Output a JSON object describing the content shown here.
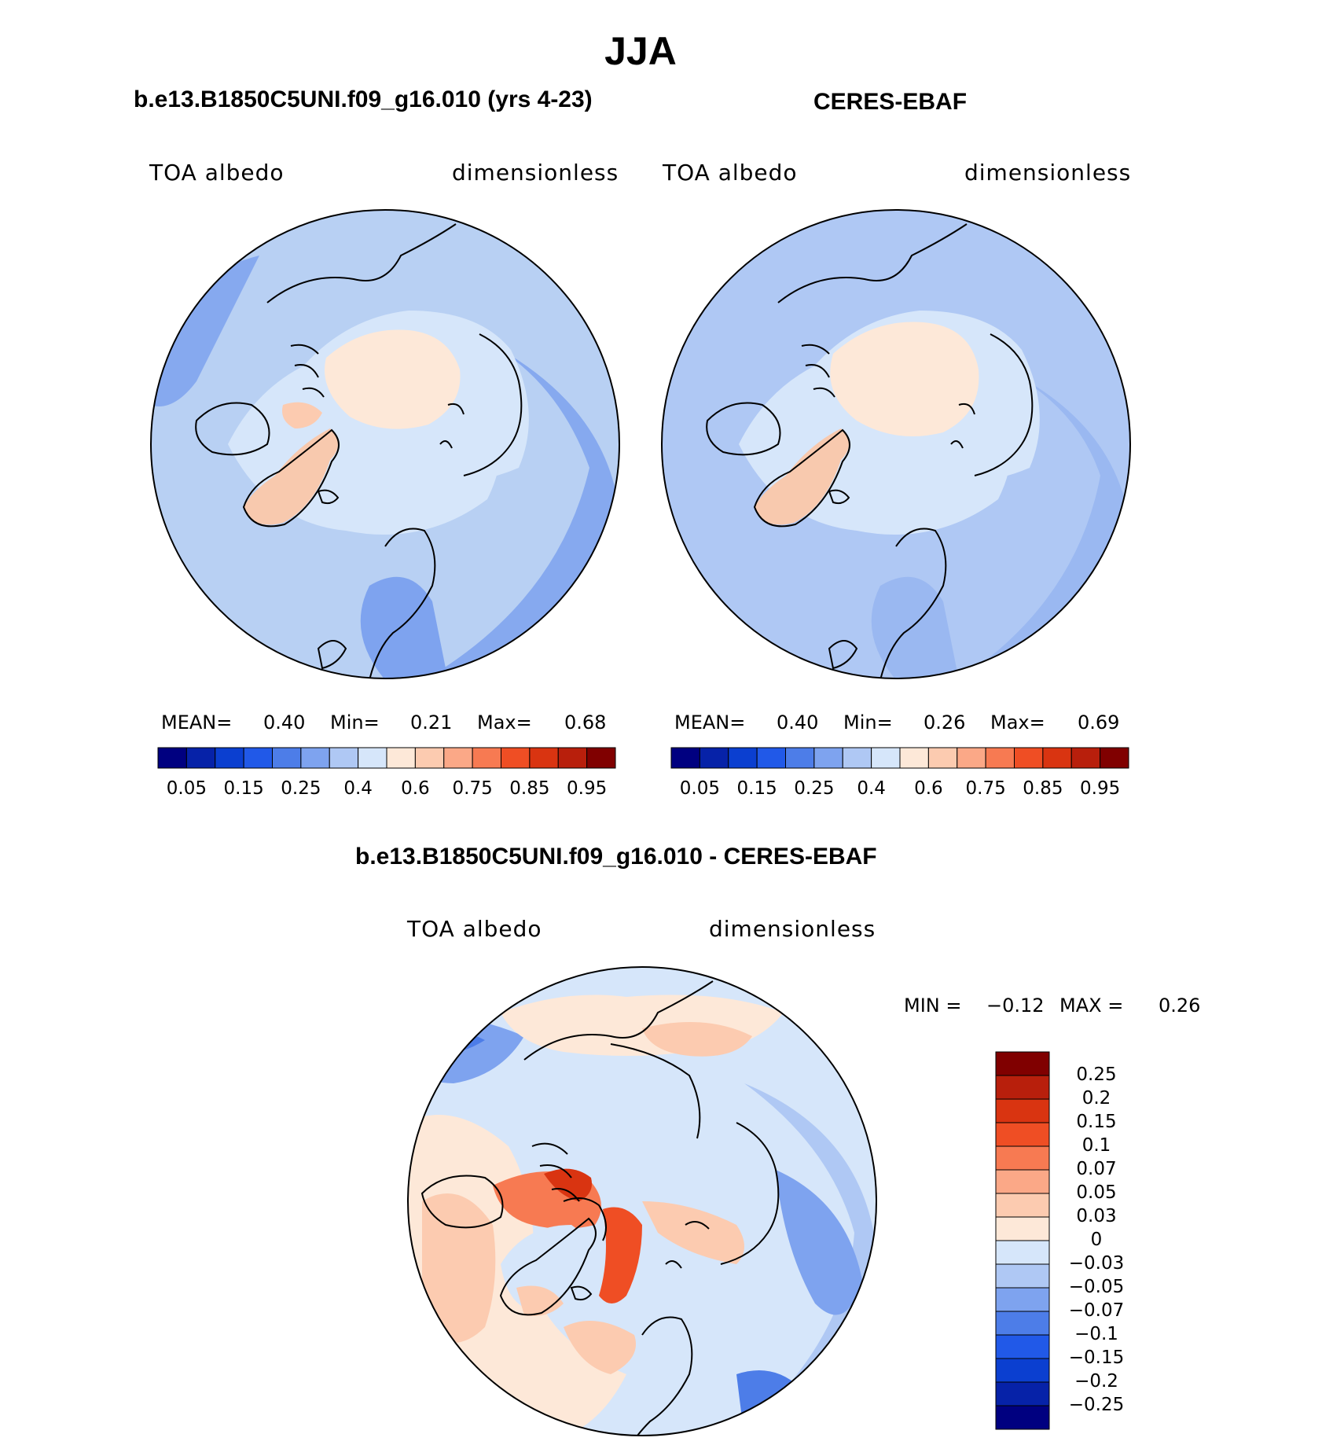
{
  "figure": {
    "season": "JJA",
    "panels": [
      {
        "title": "b.e13.B1850C5UNI.f09_g16.010 (yrs 4-23)",
        "variable": "TOA albedo",
        "units": "dimensionless",
        "mean_label": "MEAN=",
        "mean": "0.40",
        "min_label": "Min=",
        "min": "0.21",
        "max_label": "Max=",
        "max": "0.68"
      },
      {
        "title": "CERES-EBAF",
        "variable": "TOA albedo",
        "units": "dimensionless",
        "mean_label": "MEAN=",
        "mean": "0.40",
        "min_label": "Min=",
        "min": "0.26",
        "max_label": "Max=",
        "max": "0.69"
      }
    ],
    "diff_panel": {
      "title": "b.e13.B1850C5UNI.f09_g16.010 - CERES-EBAF",
      "variable": "TOA albedo",
      "units": "dimensionless",
      "min_label": "MIN =",
      "min": "−0.12",
      "max_label": "MAX =",
      "max": "0.26"
    }
  },
  "colorbar_abs": {
    "tick_labels": [
      "0.05",
      "0.15",
      "0.25",
      "0.4",
      "0.6",
      "0.75",
      "0.85",
      "0.95"
    ],
    "colors": [
      "#000080",
      "#0622a8",
      "#0b3fd0",
      "#2159e8",
      "#4d7de8",
      "#7ea3ef",
      "#afc8f4",
      "#d6e6fa",
      "#fde8d8",
      "#fccbb0",
      "#fba887",
      "#f77a52",
      "#ef4e24",
      "#d93411",
      "#b81f0c",
      "#800000"
    ]
  },
  "colorbar_diff": {
    "tick_labels": [
      "0.25",
      "0.2",
      "0.15",
      "0.1",
      "0.07",
      "0.05",
      "0.03",
      "0",
      "−0.03",
      "−0.05",
      "−0.07",
      "−0.1",
      "−0.15",
      "−0.2",
      "−0.25"
    ],
    "colors": [
      "#800000",
      "#b81f0c",
      "#d93411",
      "#ef4e24",
      "#f77a52",
      "#fba887",
      "#fccbb0",
      "#fde8d8",
      "#d6e6fa",
      "#afc8f4",
      "#7ea3ef",
      "#4d7de8",
      "#2159e8",
      "#0b3fd0",
      "#0622a8",
      "#000080"
    ]
  },
  "colors": {
    "ocean_mid": "#b8d0f3",
    "ocean_low": "#86a9ef",
    "ice": "#fde8d8",
    "greenland": "#f8c9ae",
    "pale": "#d6e6fa"
  }
}
